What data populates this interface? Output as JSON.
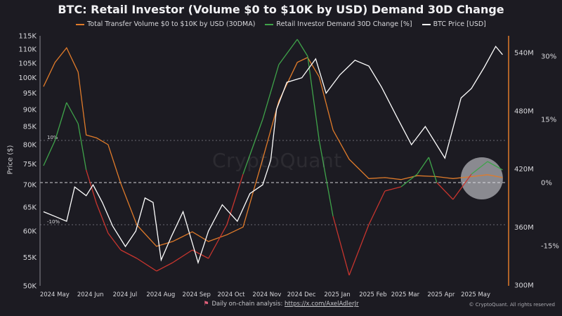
{
  "title": "BTC: Retail Investor (Volume $0 to $10K by USD) Demand 30D Change",
  "legend": {
    "volume": "Total Transfer Volume $0 to $10K by USD (30DMA)",
    "demand": "Retail Investor Demand 30D Change [%]",
    "price": "BTC Price [USD]"
  },
  "watermark": "CryptoQuant",
  "footer": {
    "text": "Daily on-chain analysis:",
    "link": "https://x.com/AxelAdlerJr"
  },
  "copyright": "© CryptoQuant. All rights reserved",
  "colors": {
    "background": "#1c1b22",
    "volume": "#e07b2a",
    "demand": "#3fa34a",
    "demand_negative": "#c8352e",
    "price": "#ffffff"
  },
  "chart_data": {
    "type": "line",
    "ylabel": "Price ($)",
    "x_ticks": [
      "2024 May",
      "2024 Jun",
      "2024 Jul",
      "2024 Aug",
      "2024 Sep",
      "2024 Oct",
      "2024 Nov",
      "2024 Dec",
      "2025 Jan",
      "2025 Feb",
      "2025 Mar",
      "2025 Apr",
      "2025 May"
    ],
    "price_axis": {
      "scale": "log",
      "range": [
        50000,
        115000
      ],
      "ticks": [
        "115K",
        "110K",
        "105K",
        "100K",
        "95K",
        "90K",
        "85K",
        "80K",
        "75K",
        "70K",
        "65K",
        "60K",
        "55K",
        "50K"
      ]
    },
    "volume_axis": {
      "range": [
        "300M",
        "560M"
      ],
      "ticks": [
        "540M",
        "480M",
        "420M",
        "360M",
        "300M"
      ]
    },
    "demand_axis": {
      "range": [
        "-25%",
        "40%"
      ],
      "ticks": [
        "30%",
        "15%",
        "0%",
        "-15%"
      ]
    },
    "reference_lines": [
      "10%",
      "0%",
      "-10%"
    ],
    "highlight": "late April to May 2025",
    "series": [
      {
        "name": "BTC Price [USD]",
        "axis": "price",
        "x": [
          "2024-04-25",
          "2024-05-05",
          "2024-05-15",
          "2024-05-22",
          "2024-06-01",
          "2024-06-07",
          "2024-06-15",
          "2024-06-24",
          "2024-07-05",
          "2024-07-14",
          "2024-07-22",
          "2024-07-29",
          "2024-08-05",
          "2024-08-14",
          "2024-08-24",
          "2024-09-06",
          "2024-09-15",
          "2024-09-27",
          "2024-10-10",
          "2024-10-21",
          "2024-11-01",
          "2024-11-08",
          "2024-11-13",
          "2024-11-22",
          "2024-12-05",
          "2024-12-17",
          "2024-12-26",
          "2025-01-07",
          "2025-01-20",
          "2025-02-01",
          "2025-02-12",
          "2025-02-25",
          "2025-03-10",
          "2025-03-22",
          "2025-04-08",
          "2025-04-22",
          "2025-05-01",
          "2025-05-12",
          "2025-05-22",
          "2025-05-28"
        ],
        "values": [
          64000,
          63000,
          62000,
          69500,
          67500,
          70000,
          66000,
          61000,
          57000,
          60000,
          67000,
          66000,
          54500,
          59000,
          64000,
          54000,
          60000,
          65500,
          62000,
          68000,
          70000,
          76000,
          90000,
          98500,
          100000,
          106500,
          95000,
          101000,
          106000,
          104000,
          97000,
          88000,
          80000,
          85000,
          76500,
          93500,
          96500,
          103500,
          111000,
          108000
        ]
      },
      {
        "name": "Total Transfer Volume $0 to $10K by USD (30DMA)",
        "axis": "volume",
        "x": [
          "2024-04-25",
          "2024-05-05",
          "2024-05-15",
          "2024-05-25",
          "2024-06-01",
          "2024-06-10",
          "2024-06-20",
          "2024-07-01",
          "2024-07-15",
          "2024-08-01",
          "2024-08-15",
          "2024-09-01",
          "2024-09-15",
          "2024-10-01",
          "2024-10-15",
          "2024-11-01",
          "2024-11-15",
          "2024-12-01",
          "2024-12-10",
          "2024-12-20",
          "2025-01-01",
          "2025-01-15",
          "2025-02-01",
          "2025-02-15",
          "2025-03-01",
          "2025-03-15",
          "2025-04-01",
          "2025-04-15",
          "2025-05-01",
          "2025-05-15",
          "2025-05-28"
        ],
        "values": [
          505,
          530,
          545,
          520,
          455,
          452,
          445,
          405,
          362,
          340,
          345,
          355,
          345,
          352,
          360,
          430,
          490,
          530,
          535,
          515,
          460,
          430,
          410,
          411,
          409,
          413,
          412,
          410,
          412,
          414,
          411
        ]
      },
      {
        "name": "Retail Investor Demand 30D Change [%]",
        "axis": "demand",
        "x": [
          "2024-04-25",
          "2024-05-05",
          "2024-05-15",
          "2024-05-25",
          "2024-06-01",
          "2024-06-10",
          "2024-06-20",
          "2024-07-01",
          "2024-07-15",
          "2024-08-01",
          "2024-08-15",
          "2024-09-01",
          "2024-09-15",
          "2024-10-01",
          "2024-10-15",
          "2024-11-01",
          "2024-11-15",
          "2024-12-01",
          "2024-12-10",
          "2024-12-20",
          "2025-01-01",
          "2025-01-15",
          "2025-02-01",
          "2025-02-15",
          "2025-03-01",
          "2025-03-15",
          "2025-03-25",
          "2025-04-01",
          "2025-04-15",
          "2025-05-01",
          "2025-05-15",
          "2025-05-28"
        ],
        "values": [
          4,
          10,
          19,
          14,
          3,
          -5,
          -12,
          -16,
          -18,
          -21,
          -19,
          -16,
          -18,
          -10,
          2,
          15,
          28,
          34,
          30,
          10,
          -8,
          -22,
          -10,
          -2,
          -1,
          2,
          6,
          0,
          -4,
          2,
          5,
          3
        ]
      }
    ]
  }
}
